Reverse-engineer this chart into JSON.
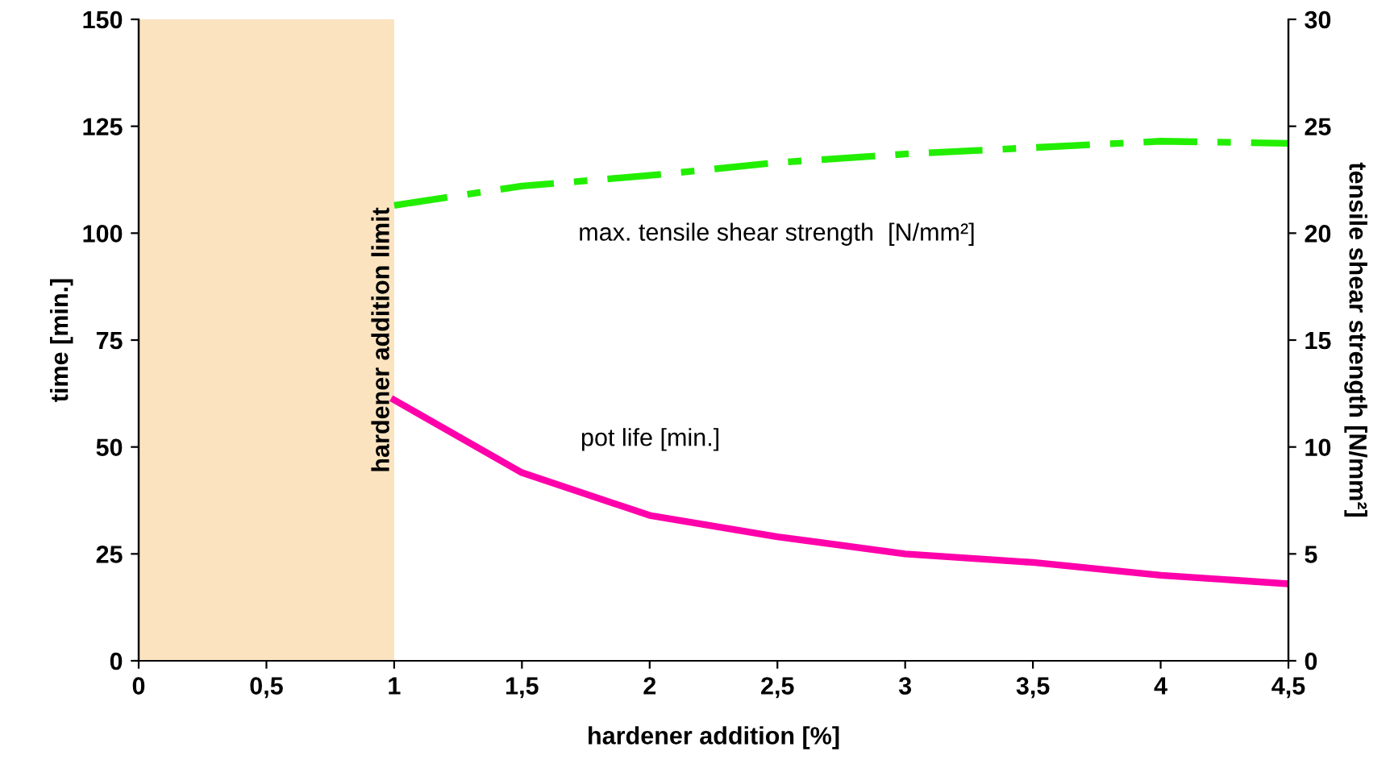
{
  "chart_data": {
    "type": "line",
    "xlabel": "hardener addition [%]",
    "ylabel": "time [min.]",
    "y2label": "tensile shear strength [N/mm²]",
    "xlim": [
      0,
      4.5
    ],
    "xticks": [
      0,
      {
        "value": 0.5,
        "label": "0,5"
      },
      1,
      {
        "value": 1.5,
        "label": "1,5"
      },
      2,
      {
        "value": 2.5,
        "label": "2,5"
      },
      3,
      {
        "value": 3.5,
        "label": "3,5"
      },
      4,
      {
        "value": 4.5,
        "label": "4,5"
      }
    ],
    "ylim": [
      0,
      150
    ],
    "yticks": [
      0,
      25,
      50,
      75,
      100,
      125,
      150
    ],
    "y2lim": [
      0,
      30
    ],
    "y2ticks": [
      0,
      5,
      10,
      15,
      20,
      25,
      30
    ],
    "series": [
      {
        "color": "#ff00aa",
        "x": [
          1,
          1.5,
          2,
          2.5,
          3,
          3.5,
          4,
          4.5
        ],
        "values": [
          61,
          44,
          34,
          29,
          25,
          23,
          20,
          18
        ],
        "line_style": "solid"
      },
      {
        "color": "#22ee00",
        "axis": "y2",
        "x": [
          1,
          1.5,
          2,
          2.5,
          3,
          3.5,
          4,
          4.5
        ],
        "values": [
          21.3,
          22.2,
          22.7,
          23.3,
          23.7,
          24.0,
          24.3,
          24.2
        ],
        "line_style": "dashdot"
      }
    ],
    "bands": [
      {
        "axis": "x",
        "from": 0,
        "to": 1,
        "label": "hardener addition limit",
        "color": "#fbe3bf"
      }
    ],
    "annotations": [
      "max. tensile shear strength  [N/mm²]",
      "pot life [min.]"
    ],
    "grid": false,
    "legend": false,
    "marker": "none"
  }
}
